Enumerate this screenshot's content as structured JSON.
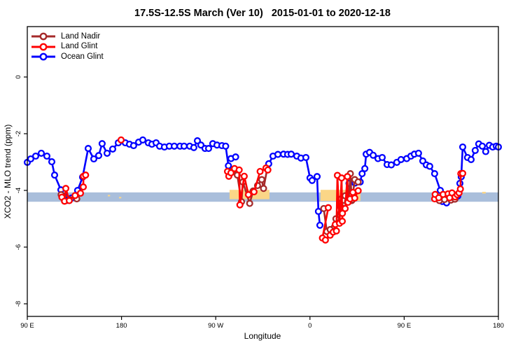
{
  "title": "17.5S-12.5S March (Ver 10)   2015-01-01 to 2020-12-18",
  "legend": {
    "items": [
      {
        "label": "Land Nadir",
        "color": "#A52A2A"
      },
      {
        "label": "Land Glint",
        "color": "#FF0000"
      },
      {
        "label": "Ocean Glint",
        "color": "#0000FF"
      }
    ]
  },
  "axes": {
    "x": {
      "label": "Longitude",
      "ticks": [
        {
          "lon": 90,
          "text": "90 E"
        },
        {
          "lon": 180,
          "text": "180"
        },
        {
          "lon": 270,
          "text": "90 W"
        },
        {
          "lon": 360,
          "text": "0"
        },
        {
          "lon": 450,
          "text": "90 E"
        },
        {
          "lon": 540,
          "text": "180"
        }
      ]
    },
    "y": {
      "label": "XCO2 - MLO trend (ppm)",
      "ticks": [
        {
          "v": 0,
          "text": "0"
        },
        {
          "v": -2,
          "text": "-2"
        },
        {
          "v": -4,
          "text": "-4"
        },
        {
          "v": -6,
          "text": "-6"
        },
        {
          "v": -8,
          "text": "-8"
        }
      ]
    }
  },
  "chart_data": {
    "type": "line",
    "title": "17.5S-12.5S March (Ver 10)   2015-01-01 to 2020-12-18",
    "xlabel": "Longitude",
    "ylabel": "XCO2 - MLO trend (ppm)",
    "x_axis_note": "longitude unwrapped along axis: 90=90E (left edge), 180, 270=90W, 360=0, 450=90E, 540=180 (right edge)",
    "xlim": [
      90,
      540
    ],
    "ylim": [
      -8.44,
      1.78
    ],
    "grid": false,
    "legend_position": "top-left",
    "bands": [
      {
        "name": "ocean-reference-band",
        "color": "#A9BEDB",
        "lon": [
          90,
          540
        ],
        "v": [
          -4.07,
          -4.4
        ]
      },
      {
        "name": "land-band-south-america",
        "color": "#FBD687",
        "lon": [
          283.2,
          321.3
        ],
        "v": [
          -3.98,
          -4.31
        ]
      },
      {
        "name": "land-band-africa",
        "color": "#FBD687",
        "lon": [
          370.2,
          408.2
        ],
        "v": [
          -3.98,
          -4.37
        ]
      },
      {
        "name": "land-dash-new-zealand-a",
        "color": "#FBD687",
        "lon": [
          166.9,
          169.1
        ],
        "v": [
          -4.16,
          -4.21
        ]
      },
      {
        "name": "land-dash-new-zealand-b",
        "color": "#FBD687",
        "lon": [
          177.6,
          179.8
        ],
        "v": [
          -4.23,
          -4.28
        ]
      },
      {
        "name": "land-dash-new-zealand-c",
        "color": "#FBD687",
        "lon": [
          524.6,
          527.9
        ],
        "v": [
          -4.05,
          -4.11
        ]
      }
    ],
    "series": [
      {
        "name": "Ocean Glint",
        "color": "#0000FF",
        "segments": [
          [
            [
              90,
              -3.01
            ],
            [
              93.3,
              -2.89
            ],
            [
              98,
              -2.79
            ],
            [
              103.4,
              -2.69
            ],
            [
              108.7,
              -2.79
            ],
            [
              113.4,
              -2.99
            ],
            [
              116.1,
              -3.46
            ],
            [
              122.1,
              -3.98
            ],
            [
              125.4,
              -4.2
            ],
            [
              128.1,
              -4.35
            ],
            [
              132.1,
              -4.27
            ],
            [
              138.1,
              -4.0
            ],
            [
              142.8,
              -3.53
            ],
            [
              148.2,
              -2.52
            ],
            [
              153.5,
              -2.89
            ],
            [
              158.2,
              -2.77
            ],
            [
              161.5,
              -2.35
            ],
            [
              166.2,
              -2.69
            ],
            [
              171.6,
              -2.54
            ],
            [
              176.9,
              -2.32
            ],
            [
              183.6,
              -2.32
            ],
            [
              187.6,
              -2.37
            ],
            [
              191.6,
              -2.42
            ],
            [
              196.3,
              -2.3
            ],
            [
              200.3,
              -2.22
            ],
            [
              205.6,
              -2.32
            ],
            [
              209,
              -2.37
            ],
            [
              213,
              -2.32
            ],
            [
              216.4,
              -2.44
            ],
            [
              221,
              -2.47
            ],
            [
              225.7,
              -2.44
            ],
            [
              230.4,
              -2.44
            ],
            [
              235.8,
              -2.44
            ],
            [
              239.8,
              -2.44
            ],
            [
              245.1,
              -2.44
            ],
            [
              249.1,
              -2.49
            ],
            [
              252.5,
              -2.25
            ],
            [
              255.8,
              -2.4
            ],
            [
              259.8,
              -2.52
            ],
            [
              263.2,
              -2.52
            ],
            [
              267.2,
              -2.35
            ],
            [
              271.2,
              -2.4
            ],
            [
              275.9,
              -2.42
            ],
            [
              279.5,
              -2.44
            ],
            [
              282.1,
              -3.13
            ]
          ],
          [
            [
              284.6,
              -2.88
            ],
            [
              289,
              -2.82
            ]
          ],
          [
            [
              320.6,
              -3.06
            ],
            [
              324.7,
              -2.79
            ],
            [
              329.4,
              -2.73
            ],
            [
              334.7,
              -2.72
            ],
            [
              338.7,
              -2.73
            ],
            [
              342.1,
              -2.72
            ],
            [
              347.4,
              -2.79
            ],
            [
              351.4,
              -2.86
            ],
            [
              356.1,
              -2.84
            ],
            [
              360.1,
              -3.56
            ],
            [
              362.1,
              -3.65
            ],
            [
              366.8,
              -3.51
            ],
            [
              368.1,
              -4.74
            ],
            [
              369.5,
              -5.23
            ]
          ],
          [
            [
              397.3,
              -3.75
            ],
            [
              403,
              -3.74
            ],
            [
              408,
              -3.7
            ],
            [
              409.8,
              -3.41
            ],
            [
              412.4,
              -3.23
            ],
            [
              413.7,
              -2.72
            ],
            [
              417,
              -2.66
            ],
            [
              420.4,
              -2.76
            ],
            [
              425,
              -2.88
            ],
            [
              429,
              -2.84
            ],
            [
              433.7,
              -3.09
            ],
            [
              437.7,
              -3.1
            ],
            [
              443,
              -3.01
            ],
            [
              447,
              -2.91
            ],
            [
              452.4,
              -2.88
            ],
            [
              456.4,
              -2.79
            ],
            [
              459.7,
              -2.72
            ],
            [
              463.7,
              -2.69
            ],
            [
              467.8,
              -2.96
            ],
            [
              471.1,
              -3.1
            ],
            [
              474.4,
              -3.15
            ],
            [
              479.1,
              -3.41
            ],
            [
              484.5,
              -4.0
            ],
            [
              486.5,
              -4.39
            ],
            [
              489.1,
              -4.2
            ],
            [
              490.5,
              -4.44
            ],
            [
              501.2,
              -4.2
            ],
            [
              503.2,
              -3.75
            ],
            [
              504.5,
              -3.52
            ],
            [
              505.9,
              -2.47
            ],
            [
              510.5,
              -2.84
            ],
            [
              513.9,
              -2.91
            ],
            [
              517.9,
              -2.59
            ],
            [
              521.2,
              -2.36
            ],
            [
              524.6,
              -2.44
            ],
            [
              527.9,
              -2.63
            ],
            [
              531.3,
              -2.41
            ],
            [
              534.6,
              -2.47
            ],
            [
              537.9,
              -2.44
            ],
            [
              540,
              -2.47
            ]
          ]
        ]
      },
      {
        "name": "Land Nadir",
        "color": "#A52A2A",
        "segments": [
          [
            [
              122.3,
              -4.15
            ],
            [
              137.3,
              -4.3
            ]
          ],
          [
            [
              286.3,
              -3.31
            ],
            [
              290.6,
              -3.46
            ],
            [
              294.6,
              -4.4
            ],
            [
              295.9,
              -3.7
            ],
            [
              302.4,
              -4.46
            ],
            [
              305.7,
              -4.02
            ],
            [
              309.9,
              -3.83
            ],
            [
              313.9,
              -3.62
            ],
            [
              315.7,
              -3.93
            ],
            [
              319.1,
              -3.25
            ]
          ],
          [
            [
              373.2,
              -4.64
            ],
            [
              376.1,
              -5.45
            ],
            [
              379.3,
              -5.38
            ],
            [
              384.8,
              -5.0
            ],
            [
              389.3,
              -4.57
            ],
            [
              389.8,
              -4.3
            ],
            [
              392.6,
              -4.35
            ],
            [
              393.6,
              -4.19
            ],
            [
              395.9,
              -4.39
            ],
            [
              396.9,
              -4.38
            ],
            [
              398.6,
              -3.41
            ],
            [
              399.9,
              -4.36
            ],
            [
              400.3,
              -4.33
            ],
            [
              402.8,
              -3.62
            ],
            [
              406,
              -3.7
            ]
          ],
          [
            [
              483.6,
              -4.36
            ],
            [
              488.5,
              -4.32
            ],
            [
              494.7,
              -4.34
            ],
            [
              498.5,
              -4.31
            ]
          ]
        ]
      },
      {
        "name": "Land Glint",
        "color": "#FF0000",
        "segments": [
          [
            [
              123,
              -4.24
            ],
            [
              125.6,
              -4.38
            ],
            [
              126.8,
              -3.93
            ],
            [
              130.1,
              -4.36
            ],
            [
              135.7,
              -4.18
            ],
            [
              140.8,
              -4.1
            ],
            [
              143.5,
              -3.88
            ],
            [
              143.6,
              -3.5
            ],
            [
              145.7,
              -3.46
            ]
          ],
          [
            [
              179.6,
              -2.22
            ]
          ],
          [
            [
              281.2,
              -3.33
            ],
            [
              282.5,
              -3.5
            ],
            [
              284.5,
              -3.38
            ],
            [
              287.9,
              -3.23
            ],
            [
              292.4,
              -3.28
            ],
            [
              293.1,
              -4.51
            ],
            [
              297.2,
              -3.5
            ],
            [
              301.2,
              -4.15
            ],
            [
              306.6,
              -4.05
            ],
            [
              312.4,
              -3.33
            ],
            [
              318,
              -3.21
            ],
            [
              319.8,
              -3.28
            ]
          ],
          [
            [
              377.5,
              -4.61
            ],
            [
              371.9,
              -5.68
            ],
            [
              374.8,
              -5.75
            ],
            [
              379.3,
              -5.58
            ],
            [
              382.2,
              -5.47
            ],
            [
              384.2,
              -5.2
            ],
            [
              385.3,
              -5.43
            ],
            [
              386.2,
              -3.47
            ],
            [
              388.2,
              -5.16
            ],
            [
              390.2,
              -3.56
            ],
            [
              390.9,
              -5.09
            ],
            [
              391,
              -4.81
            ],
            [
              393.6,
              -4.64
            ],
            [
              395.8,
              -3.51
            ],
            [
              396.3,
              -4.42
            ],
            [
              398.3,
              -4.3
            ],
            [
              401,
              -4.07
            ],
            [
              402.8,
              -4.27
            ],
            [
              406.1,
              -4.01
            ]
          ],
          [
            [
              479.1,
              -4.3
            ],
            [
              479.6,
              -4.14
            ],
            [
              483,
              -4.26
            ],
            [
              487.2,
              -4.14
            ],
            [
              491.9,
              -4.12
            ],
            [
              493.4,
              -4.26
            ],
            [
              495.7,
              -4.09
            ],
            [
              498.6,
              -4.23
            ],
            [
              500.6,
              -4.15
            ],
            [
              502.4,
              -4.09
            ],
            [
              503.7,
              -3.95
            ],
            [
              504.1,
              -3.41
            ],
            [
              505.9,
              -3.4
            ]
          ]
        ]
      }
    ]
  }
}
